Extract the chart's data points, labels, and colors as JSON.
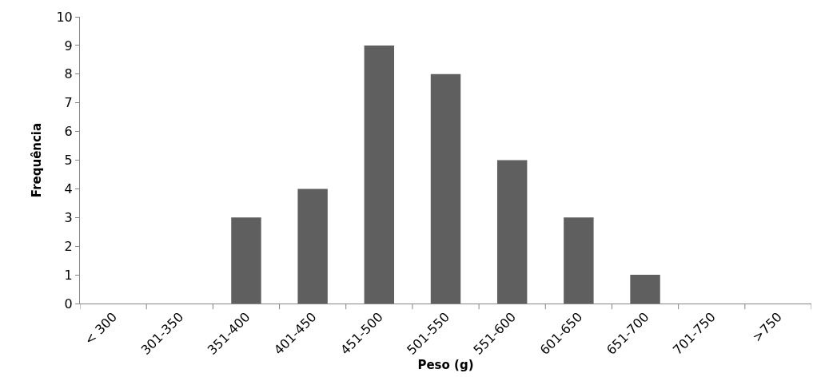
{
  "chart_data": {
    "type": "bar",
    "xlabel": "Peso (g)",
    "ylabel": "Frequência",
    "categories": [
      "< 300",
      "301-350",
      "351-400",
      "401-450",
      "451-500",
      "501-550",
      "551-600",
      "601-650",
      "651-700",
      "701-750",
      ">750"
    ],
    "values": [
      0,
      0,
      3,
      4,
      9,
      8,
      5,
      3,
      1,
      0,
      0
    ],
    "color": "#5f5f5f",
    "ylim": [
      0,
      10
    ],
    "yticks": [
      0,
      1,
      2,
      3,
      4,
      5,
      6,
      7,
      8,
      9,
      10
    ],
    "legend": false
  }
}
